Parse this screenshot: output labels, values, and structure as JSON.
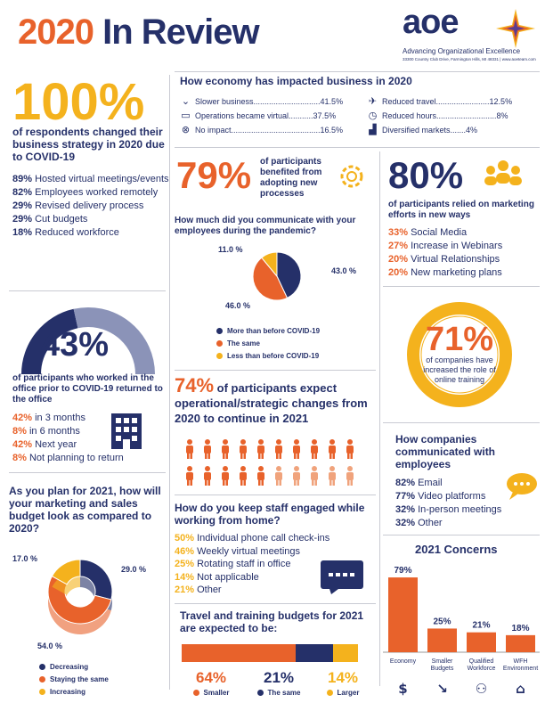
{
  "header": {
    "year": "2020",
    "title_rest": "In Review"
  },
  "logo": {
    "word": "aoe",
    "tagline": "Advancing Organizational Excellence",
    "address": "33300 Country Club Drive, Farmington Hills, MI 48331 | www.aoeteam.com"
  },
  "strategy": {
    "percent": "100%",
    "caption": "of respondents changed their business strategy in 2020 due to COVID-19",
    "items": [
      {
        "pct": "89%",
        "text": " Hosted virtual meetings/events"
      },
      {
        "pct": "82%",
        "text": " Employees worked remotely"
      },
      {
        "pct": "29%",
        "text": " Revised delivery process"
      },
      {
        "pct": "29%",
        "text": " Cut budgets"
      },
      {
        "pct": "18%",
        "text": " Reduced workforce"
      }
    ]
  },
  "economy": {
    "title": "How economy has impacted business in 2020",
    "left": [
      {
        "icon": "chevron-down-icon",
        "text": "Slower business..............................41.5%"
      },
      {
        "icon": "laptop-icon",
        "text": "Operations became virtual...........37.5%"
      },
      {
        "icon": "x-circle-icon",
        "text": "No impact........................................16.5%"
      }
    ],
    "right": [
      {
        "icon": "plane-icon",
        "text": "Reduced travel........................12.5%"
      },
      {
        "icon": "clock-icon",
        "text": "Reduced hours...........................8%"
      },
      {
        "icon": "factory-icon",
        "text": "Diversified markets.......4%"
      }
    ]
  },
  "adopting": {
    "percent": "79%",
    "caption": "of participants benefited from adopting new processes"
  },
  "communicate": {
    "title": "How much did you communicate with your employees during the pandemic?",
    "chart_data": {
      "type": "pie",
      "slices": [
        {
          "label": "More than before COVID-19",
          "value": 43.0,
          "display": "43.0 %",
          "color": "#253069"
        },
        {
          "label": "The same",
          "value": 46.0,
          "display": "46.0 %",
          "color": "#e8622b"
        },
        {
          "label": "Less than before COVID-19",
          "value": 11.0,
          "display": "11.0 %",
          "color": "#f4b21d"
        }
      ]
    }
  },
  "marketing": {
    "percent": "80%",
    "caption": "of participants relied on marketing efforts in new ways",
    "items": [
      {
        "pct": "33%",
        "text": " Social Media"
      },
      {
        "pct": "27%",
        "text": " Increase in Webinars"
      },
      {
        "pct": "20%",
        "text": " Virtual Relationships"
      },
      {
        "pct": "20%",
        "text": " New marketing plans"
      }
    ]
  },
  "office": {
    "percent": "43%",
    "gauge_value": 43,
    "caption": "of participants who worked in the office prior to COVID-19 returned to the office",
    "items": [
      {
        "pct": "42%",
        "text": " in 3 months"
      },
      {
        "pct": "8%",
        "text": " in 6 months"
      },
      {
        "pct": "42%",
        "text": " Next year"
      },
      {
        "pct": "8%",
        "text": " Not planning to return"
      }
    ]
  },
  "online": {
    "percent": "71%",
    "caption": "of companies have increased the role of online training",
    "ring_value": 71
  },
  "operational": {
    "percent": "74%",
    "text": " of participants expect operational/strategic changes from 2020 to continue in 2021",
    "people_total": 20,
    "people_highlight": 15
  },
  "budget": {
    "title": "As you plan for 2021, how will your marketing and sales budget look as compared to 2020?",
    "chart_data": {
      "type": "pie",
      "slices": [
        {
          "label": "Decreasing",
          "value": 29.0,
          "display": "29.0 %",
          "color": "#253069"
        },
        {
          "label": "Staying the same",
          "value": 54.0,
          "display": "54.0 %",
          "color": "#e8622b"
        },
        {
          "label": "Increasing",
          "value": 17.0,
          "display": "17.0 %",
          "color": "#f4b21d"
        }
      ]
    }
  },
  "engaged": {
    "title": "How do you keep staff engaged while working from home?",
    "items": [
      {
        "pct": "50%",
        "text": " Individual phone call check-ins"
      },
      {
        "pct": "46%",
        "text": " Weekly virtual meetings"
      },
      {
        "pct": "25%",
        "text": " Rotating staff in office"
      },
      {
        "pct": "14%",
        "text": " Not applicable"
      },
      {
        "pct": "21%",
        "text": " Other"
      }
    ]
  },
  "communicated": {
    "title": "How companies communicated with employees",
    "items": [
      {
        "pct": "82%",
        "text": " Email"
      },
      {
        "pct": "77%",
        "text": " Video platforms"
      },
      {
        "pct": "32%",
        "text": " In-person meetings"
      },
      {
        "pct": "32%",
        "text": " Other"
      }
    ]
  },
  "travel": {
    "title": "Travel and training budgets for 2021 are expected to be:",
    "chart_data": {
      "type": "bar",
      "segments": [
        {
          "label": "Smaller",
          "value": 64,
          "display": "64%",
          "color": "#e8622b"
        },
        {
          "label": "The same",
          "value": 21,
          "display": "21%",
          "color": "#253069"
        },
        {
          "label": "Larger",
          "value": 14,
          "display": "14%",
          "color": "#f4b21d"
        }
      ]
    }
  },
  "concerns": {
    "title": "2021 Concerns",
    "chart_data": {
      "type": "bar",
      "ylim": [
        0,
        100
      ],
      "bars": [
        {
          "label": "Economy",
          "value": 79,
          "display": "79%",
          "icon": "dollar-icon"
        },
        {
          "label": "Smaller Budgets",
          "value": 25,
          "display": "25%",
          "icon": "down-arrow-icon"
        },
        {
          "label": "Qualified Workforce",
          "value": 21,
          "display": "21%",
          "icon": "person-icon"
        },
        {
          "label": "WFH Environment",
          "value": 18,
          "display": "18%",
          "icon": "house-icon"
        }
      ]
    }
  }
}
